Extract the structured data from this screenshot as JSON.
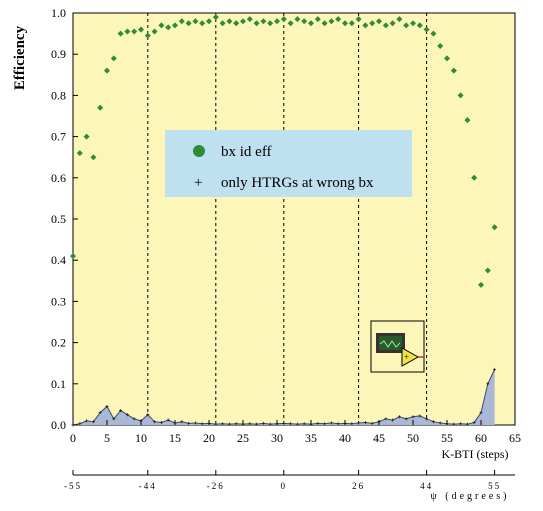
{
  "chart_data": {
    "type": "scatter",
    "xlabel": "K-BTI (steps)",
    "ylabel": "Efficiency",
    "xlim": [
      0,
      65
    ],
    "ylim": [
      0,
      1
    ],
    "x_ticks": [
      0,
      5,
      10,
      15,
      20,
      25,
      30,
      35,
      40,
      45,
      50,
      55,
      60,
      65
    ],
    "y_ticks": [
      0.0,
      0.1,
      0.2,
      0.3,
      0.4,
      0.5,
      0.6,
      0.7,
      0.8,
      0.9,
      1.0
    ],
    "x_tick_labels": [
      "0",
      "5",
      "10",
      "15",
      "20",
      "25",
      "30",
      "35",
      "40",
      "45",
      "50",
      "55",
      "60",
      "65"
    ],
    "y_tick_labels": [
      "0.0",
      "0.1",
      "0.2",
      "0.3",
      "0.4",
      "0.5",
      "0.6",
      "0.7",
      "0.8",
      "0.9",
      "1.0"
    ],
    "grid": "vertical dashed lines at steps 11, 21, 31, 42, 52",
    "legend_position": "center-left",
    "series": [
      {
        "name": "bx id eff",
        "marker": "diamond",
        "color": "#2e8b3a",
        "x": [
          0,
          1,
          2,
          3,
          4,
          5,
          6,
          7,
          8,
          9,
          10,
          11,
          12,
          13,
          14,
          15,
          16,
          17,
          18,
          19,
          20,
          21,
          22,
          23,
          24,
          25,
          26,
          27,
          28,
          29,
          30,
          31,
          32,
          33,
          34,
          35,
          36,
          37,
          38,
          39,
          40,
          41,
          42,
          43,
          44,
          45,
          46,
          47,
          48,
          49,
          50,
          51,
          52,
          53,
          54,
          55,
          56,
          57,
          58,
          59,
          60,
          61,
          62
        ],
        "y": [
          0.41,
          0.66,
          0.7,
          0.65,
          0.77,
          0.86,
          0.89,
          0.95,
          0.955,
          0.955,
          0.96,
          0.945,
          0.955,
          0.97,
          0.965,
          0.97,
          0.98,
          0.975,
          0.98,
          0.975,
          0.98,
          0.99,
          0.975,
          0.98,
          0.975,
          0.98,
          0.985,
          0.975,
          0.98,
          0.975,
          0.98,
          0.985,
          0.975,
          0.985,
          0.98,
          0.975,
          0.985,
          0.975,
          0.98,
          0.985,
          0.975,
          0.975,
          0.985,
          0.97,
          0.975,
          0.98,
          0.97,
          0.975,
          0.985,
          0.97,
          0.975,
          0.97,
          0.96,
          0.95,
          0.92,
          0.89,
          0.86,
          0.8,
          0.74,
          0.6,
          0.34,
          0.375,
          0.48
        ]
      },
      {
        "name": "only HTRGs at wrong bx",
        "marker": "plus",
        "color": "#3b4a6b",
        "fill": "#aab8d8",
        "x": [
          0,
          1,
          2,
          3,
          4,
          5,
          6,
          7,
          8,
          9,
          10,
          11,
          12,
          13,
          14,
          15,
          16,
          17,
          18,
          19,
          20,
          21,
          22,
          23,
          24,
          25,
          26,
          27,
          28,
          29,
          30,
          31,
          32,
          33,
          34,
          35,
          36,
          37,
          38,
          39,
          40,
          41,
          42,
          43,
          44,
          45,
          46,
          47,
          48,
          49,
          50,
          51,
          52,
          53,
          54,
          55,
          56,
          57,
          58,
          59,
          60,
          61,
          62
        ],
        "y": [
          0.0,
          0.003,
          0.01,
          0.008,
          0.03,
          0.045,
          0.015,
          0.035,
          0.025,
          0.015,
          0.01,
          0.025,
          0.008,
          0.006,
          0.012,
          0.005,
          0.008,
          0.004,
          0.005,
          0.003,
          0.004,
          0.002,
          0.003,
          0.002,
          0.003,
          0.002,
          0.003,
          0.002,
          0.004,
          0.002,
          0.003,
          0.004,
          0.003,
          0.002,
          0.003,
          0.002,
          0.004,
          0.003,
          0.005,
          0.003,
          0.004,
          0.003,
          0.005,
          0.006,
          0.004,
          0.008,
          0.015,
          0.012,
          0.02,
          0.015,
          0.02,
          0.022,
          0.015,
          0.008,
          0.005,
          0.003,
          0.002,
          0.003,
          0.002,
          0.006,
          0.03,
          0.1,
          0.135
        ]
      }
    ],
    "secondary_axis": {
      "label": "ψ (degrees)",
      "tick_labels": [
        "-55",
        "-44",
        "-26",
        "0",
        "26",
        "44",
        "55"
      ],
      "tick_steps": [
        0,
        11,
        21,
        31,
        42,
        52,
        62
      ]
    }
  },
  "legend": {
    "items": [
      {
        "label": "bx id eff",
        "symbol": "●"
      },
      {
        "label": "only HTRGs at wrong bx",
        "symbol": "+"
      }
    ]
  }
}
